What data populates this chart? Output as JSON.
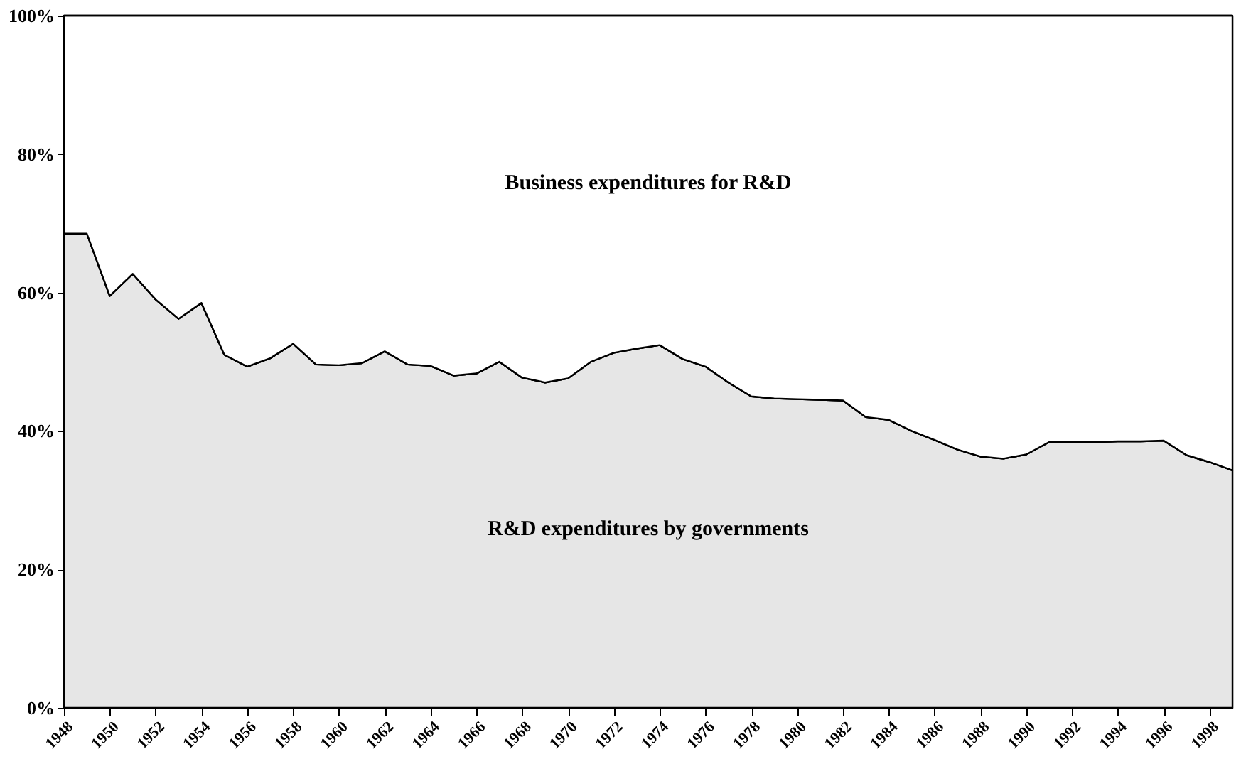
{
  "chart_data": {
    "type": "area",
    "stacked": true,
    "legend": false,
    "x": [
      1948,
      1949,
      1950,
      1951,
      1952,
      1953,
      1954,
      1955,
      1956,
      1957,
      1958,
      1959,
      1960,
      1961,
      1962,
      1963,
      1964,
      1965,
      1966,
      1967,
      1968,
      1969,
      1970,
      1971,
      1972,
      1973,
      1974,
      1975,
      1976,
      1977,
      1978,
      1979,
      1980,
      1981,
      1982,
      1983,
      1984,
      1985,
      1986,
      1987,
      1988,
      1989,
      1990,
      1991,
      1992,
      1993,
      1994,
      1995,
      1996,
      1997,
      1998,
      1999
    ],
    "xlim": [
      1948,
      1999
    ],
    "xticks": [
      1948,
      1950,
      1952,
      1954,
      1956,
      1958,
      1960,
      1962,
      1964,
      1966,
      1968,
      1970,
      1972,
      1974,
      1976,
      1978,
      1980,
      1982,
      1984,
      1986,
      1988,
      1990,
      1992,
      1994,
      1996,
      1998
    ],
    "ylim": [
      0,
      100
    ],
    "yticks": [
      {
        "value": 0,
        "label": "0%"
      },
      {
        "value": 20,
        "label": "20%"
      },
      {
        "value": 40,
        "label": "40%"
      },
      {
        "value": 60,
        "label": "60%"
      },
      {
        "value": 80,
        "label": "80%"
      },
      {
        "value": 100,
        "label": "100%"
      }
    ],
    "series": [
      {
        "name": "R&D expenditures by governments",
        "color": "#e6e6e6",
        "values": [
          68.5,
          68.5,
          59.5,
          62.7,
          59,
          56.2,
          58.5,
          51,
          49.3,
          50.5,
          52.6,
          49.6,
          49.5,
          49.8,
          51.5,
          49.6,
          49.4,
          48,
          48.3,
          50,
          47.7,
          47,
          47.6,
          50,
          51.3,
          51.9,
          52.4,
          50.4,
          49.3,
          47,
          45,
          44.7,
          44.6,
          44.5,
          44.4,
          42,
          41.6,
          40,
          38.7,
          37.3,
          36.3,
          36,
          36.6,
          38.4,
          38.4,
          38.4,
          38.5,
          38.5,
          38.6,
          36.5,
          35.5,
          34.3
        ]
      },
      {
        "name": "Business expenditures for R&D",
        "color": "#ffffff",
        "values": [
          31.5,
          31.5,
          40.5,
          37.3,
          41,
          43.8,
          41.5,
          49,
          50.7,
          49.5,
          47.4,
          50.4,
          50.5,
          50.2,
          48.5,
          50.4,
          50.6,
          52,
          51.7,
          50,
          52.3,
          53,
          52.4,
          50,
          48.7,
          48.1,
          47.6,
          49.6,
          50.7,
          53,
          55,
          55.3,
          55.4,
          55.5,
          55.6,
          58,
          58.4,
          60,
          61.3,
          62.7,
          63.7,
          64,
          63.4,
          61.6,
          61.6,
          61.6,
          61.5,
          61.5,
          61.4,
          63.5,
          64.5,
          65.7
        ]
      }
    ]
  }
}
